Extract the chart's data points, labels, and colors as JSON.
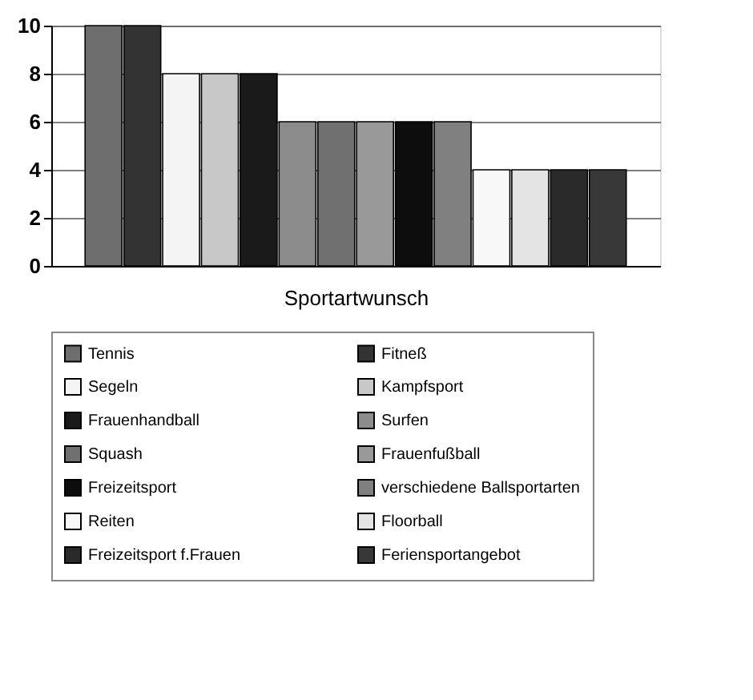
{
  "chart_data": {
    "type": "bar",
    "xlabel": "Sportartwunsch",
    "categories": [
      null
    ],
    "series": [
      {
        "name": "Tennis",
        "color": "#6e6e6e",
        "values": [
          10
        ]
      },
      {
        "name": "Fitneß",
        "color": "#333333",
        "values": [
          10
        ]
      },
      {
        "name": "Segeln",
        "color": "#f4f4f4",
        "values": [
          8
        ]
      },
      {
        "name": "Kampfsport",
        "color": "#c8c8c8",
        "values": [
          8
        ]
      },
      {
        "name": "Frauenhandball",
        "color": "#1a1a1a",
        "values": [
          8
        ]
      },
      {
        "name": "Surfen",
        "color": "#8c8c8c",
        "values": [
          6
        ]
      },
      {
        "name": "Squash",
        "color": "#707070",
        "values": [
          6
        ]
      },
      {
        "name": "Frauenfußball",
        "color": "#999999",
        "values": [
          6
        ]
      },
      {
        "name": "Freizeitsport",
        "color": "#0d0d0d",
        "values": [
          6
        ]
      },
      {
        "name": "verschiedene Ballsportarten",
        "color": "#808080",
        "values": [
          6
        ]
      },
      {
        "name": "Reiten",
        "color": "#f8f8f8",
        "values": [
          4
        ]
      },
      {
        "name": "Floorball",
        "color": "#e4e4e4",
        "values": [
          4
        ]
      },
      {
        "name": "Freizeitsport f.Frauen",
        "color": "#2a2a2a",
        "values": [
          4
        ]
      },
      {
        "name": "Feriensportangebot",
        "color": "#383838",
        "values": [
          4
        ]
      }
    ],
    "ylim": [
      0,
      10
    ],
    "yticks": [
      0,
      2,
      4,
      6,
      8,
      10
    ],
    "grid": "y",
    "legend": "bottom",
    "tick_labels": "y"
  }
}
